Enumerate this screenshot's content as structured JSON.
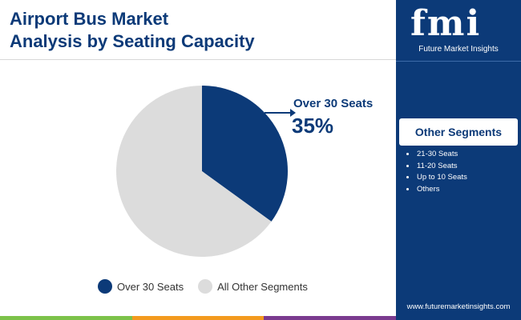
{
  "header": {
    "title_line1": "Airport Bus Market",
    "title_line2": "Analysis by Seating Capacity"
  },
  "chart_data": {
    "type": "pie",
    "title": "Airport Bus Market Analysis by Seating Capacity",
    "slices": [
      {
        "label": "Over 30 Seats",
        "value": 35,
        "color": "#0c3a78"
      },
      {
        "label": "All Other Segments",
        "value": 65,
        "color": "#dcdcdc"
      }
    ],
    "callout": {
      "label": "Over 30 Seats",
      "value_text": "35%"
    },
    "legend_position": "bottom"
  },
  "legend": {
    "items": [
      {
        "label": "Over 30 Seats",
        "color": "#0c3a78"
      },
      {
        "label": "All Other Segments",
        "color": "#dcdcdc"
      }
    ]
  },
  "sidebar": {
    "logo_mark": "fmi",
    "logo_text": "Future Market Insights",
    "segments_header": "Other Segments",
    "segments": [
      "21-30 Seats",
      "11-20 Seats",
      "Up to 10 Seats",
      "Others"
    ],
    "website": "www.futuremarketinsights.com"
  },
  "colors": {
    "brand_navy": "#0c3a78",
    "bar_green": "#7cc24a",
    "bar_orange": "#f39a1e",
    "bar_purple": "#7a3b8f"
  }
}
